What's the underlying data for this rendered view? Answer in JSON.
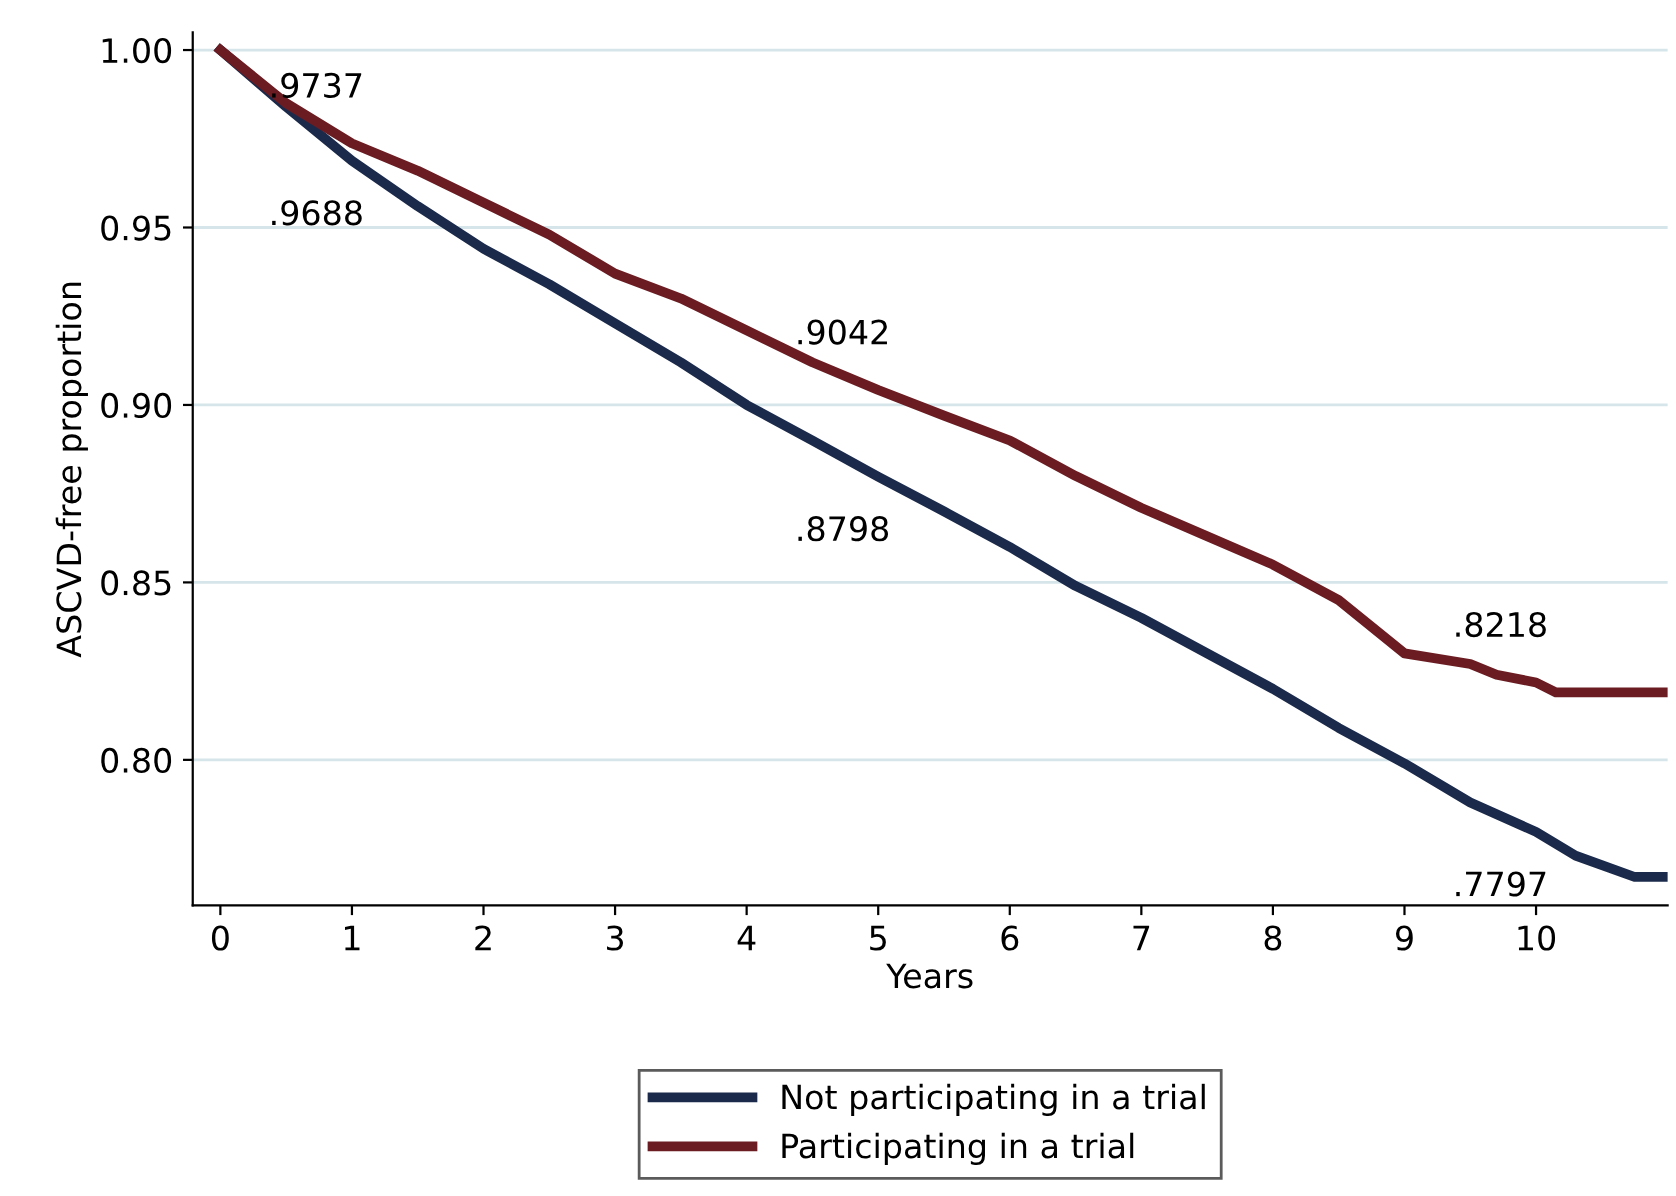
{
  "chart_data": {
    "type": "line",
    "xlabel": "Years",
    "ylabel": "ASCVD-free proportion",
    "xlim": [
      -0.21,
      11.0
    ],
    "xticks": [
      0,
      1,
      2,
      3,
      4,
      5,
      6,
      7,
      8,
      9,
      10
    ],
    "ylim": [
      0.759,
      1.005
    ],
    "yticks": [
      {
        "value": 0.8,
        "label": "0.80"
      },
      {
        "value": 0.85,
        "label": "0.85"
      },
      {
        "value": 0.9,
        "label": "0.90"
      },
      {
        "value": 0.95,
        "label": "0.95"
      },
      {
        "value": 1.0,
        "label": "1.00"
      }
    ],
    "grid": "y",
    "legend": "bottom",
    "line_style": "solid",
    "series": [
      {
        "name": "Not participating in a trial",
        "color": "#1b2a4b",
        "x": [
          0,
          0.5,
          1,
          1.5,
          2,
          2.5,
          3,
          3.5,
          4,
          4.5,
          5,
          5.5,
          6,
          6.5,
          7,
          7.5,
          8,
          8.5,
          9,
          9.5,
          10,
          10.3,
          10.75,
          11
        ],
        "values": [
          1.0,
          0.984,
          0.9688,
          0.956,
          0.944,
          0.934,
          0.923,
          0.912,
          0.9,
          0.89,
          0.8798,
          0.87,
          0.86,
          0.849,
          0.84,
          0.83,
          0.82,
          0.809,
          0.799,
          0.788,
          0.7797,
          0.773,
          0.767,
          0.767
        ]
      },
      {
        "name": "Participating in a trial",
        "color": "#6b1c22",
        "x": [
          0,
          0.5,
          1,
          1.5,
          2,
          2.5,
          3,
          3.5,
          4,
          4.5,
          5,
          5.5,
          6,
          6.5,
          7,
          7.5,
          8,
          8.5,
          9,
          9.5,
          9.7,
          10,
          10.15,
          11
        ],
        "values": [
          1.0,
          0.985,
          0.9737,
          0.966,
          0.957,
          0.948,
          0.937,
          0.93,
          0.921,
          0.912,
          0.9042,
          0.897,
          0.89,
          0.88,
          0.871,
          0.863,
          0.855,
          0.845,
          0.83,
          0.827,
          0.824,
          0.8218,
          0.819,
          0.819
        ]
      }
    ],
    "annotations": [
      {
        "text": ".9737",
        "x": 1,
        "y": 0.9737
      },
      {
        "text": ".9688",
        "x": 1,
        "y": 0.9688
      },
      {
        "text": ".9042",
        "x": 5,
        "y": 0.9042
      },
      {
        "text": ".8798",
        "x": 5,
        "y": 0.8798
      },
      {
        "text": ".8218",
        "x": 10,
        "y": 0.8218
      },
      {
        "text": ".7797",
        "x": 10,
        "y": 0.7797
      }
    ]
  }
}
